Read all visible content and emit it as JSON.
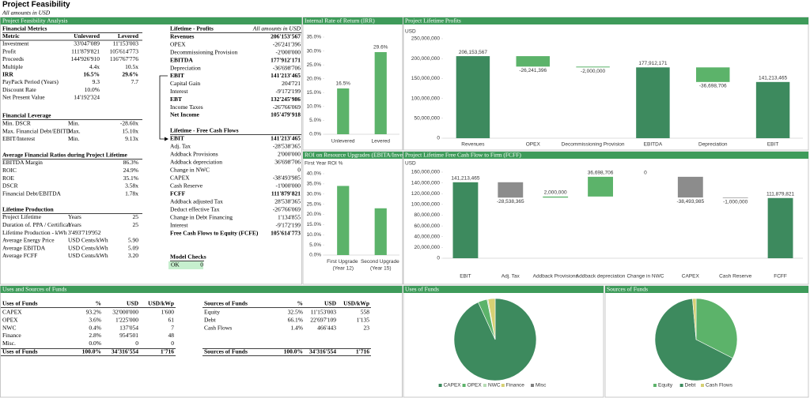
{
  "header": {
    "title": "Project Feasibility",
    "subtitle": "All amounts in USD"
  },
  "panel_titles": [
    "Project Feasibility Analysis",
    "Internal Rate of Return (IRR)",
    "Project Lifetime Profits",
    "ROI on Resource Upgrades (EBITA/Inve",
    "Project Lifetime Free Cash Flow to Firm (FCFF)",
    "Uses and Sources of Funds",
    "Uses of Funds",
    "Sources of Funds"
  ],
  "financial_metrics": {
    "title": "Financial Metrics",
    "columns": [
      "Metric",
      "Unlevered",
      "Levered"
    ],
    "rows": [
      [
        "Investment",
        "33'047'089",
        "11'153'003"
      ],
      [
        "Profit",
        "111'879'821",
        "105'614'773"
      ],
      [
        "Proceeds",
        "144'926'910",
        "116'767'776"
      ],
      [
        "Multiple",
        "4.4x",
        "10.5x"
      ],
      [
        "IRR",
        "16.5%",
        "29.6%"
      ],
      [
        "PayPack Period (Years)",
        "9.3",
        "7.7"
      ],
      [
        "Discount Rate",
        "10.0%"
      ],
      [
        "Net Present Value",
        "14'192'324"
      ]
    ]
  },
  "financial_leverage": {
    "title": "Financial Leverage",
    "rows": [
      [
        "Min. DSCR",
        "Min.",
        "-28.60x"
      ],
      [
        "Max. Financial Debt/EBITD",
        "Max.",
        "15.10x"
      ],
      [
        "EBIT/Interest",
        "Min.",
        "9.13x"
      ]
    ]
  },
  "average_ratios": {
    "title": "Average Financial Ratios during Project Lifetime",
    "rows": [
      [
        "EBITDA Margin",
        "86.3%"
      ],
      [
        "ROIC",
        "24.9%"
      ],
      [
        "ROE",
        "35.1%"
      ],
      [
        "DSCR",
        "3.58x"
      ],
      [
        "Financial Debt/EBITDA",
        "1.78x"
      ]
    ]
  },
  "lifetime_production": {
    "title": "Lifetime Production",
    "rows": [
      [
        "Project Lifetime",
        "Years",
        "25"
      ],
      [
        "Duration of. PPA / Certificat",
        "Years",
        "25"
      ],
      [
        "Lifetime Production - kWh",
        "3'493'719'952"
      ],
      [
        "Average Energy Price",
        "USD Cents/kWh",
        "5.90"
      ],
      [
        "Average EBITDA",
        "USD Cents/kWh",
        "5.09"
      ],
      [
        "Average FCFF",
        "USD Cents/kWh",
        "3.20"
      ]
    ]
  },
  "lifetime_profits": {
    "title": "Lifetime - Profits",
    "note": "All amounts in USD",
    "rows": [
      [
        "Revenues",
        "206'153'567"
      ],
      [
        "OPEX",
        "-26'241'396"
      ],
      [
        "Decommissioning Provision",
        "-2'000'000"
      ],
      [
        "EBITDA",
        "177'912'171"
      ],
      [
        "Depreciation",
        "-36'698'706"
      ],
      [
        "EBIT",
        "141'213'465"
      ],
      [
        "Capital Gain",
        "204'721"
      ],
      [
        "Interest",
        "-9'172'199"
      ],
      [
        "EBT",
        "132'245'986"
      ],
      [
        "Income Taxes",
        "-26'766'069"
      ],
      [
        "Net Income",
        "105'479'918"
      ]
    ]
  },
  "lifetime_cash_flows": {
    "title": "Lifetime - Free Cash Flows",
    "rows": [
      [
        "EBIT",
        "141'213'465"
      ],
      [
        "Adj. Tax",
        "-28'538'365"
      ],
      [
        "Addback Provisions",
        "2'000'000"
      ],
      [
        "Addback depreciation",
        "36'698'706"
      ],
      [
        "Change in NWC",
        "0"
      ],
      [
        "CAPEX",
        "-38'493'985"
      ],
      [
        "Cash Reserve",
        "-1'000'000"
      ],
      [
        "FCFF",
        "111'879'821"
      ],
      [
        "Addback adjusted Tax",
        "28'538'365"
      ],
      [
        "Deduct effective Tax",
        "-26'766'069"
      ],
      [
        "Change in Debt Financing",
        "1'134'855"
      ],
      [
        "Interest",
        "-9'172'199"
      ],
      [
        "Free Cash Flows to Equity (FCFE)",
        "105'614'773"
      ]
    ]
  },
  "model_checks": {
    "title": "Model Checks",
    "rows": [
      [
        "OK",
        "0"
      ]
    ]
  },
  "uses_of_funds": {
    "columns": [
      "Uses of Funds",
      "%",
      "USD",
      "USD/kWp"
    ],
    "rows": [
      [
        "CAPEX",
        "93.2%",
        "32'000'000",
        "1'600"
      ],
      [
        "OPEX",
        "3.6%",
        "1'225'000",
        "61"
      ],
      [
        "NWC",
        "0.4%",
        "137'054",
        "7"
      ],
      [
        "Finance",
        "2.8%",
        "954'501",
        "48"
      ],
      [
        "Misc.",
        "0.0%",
        "0",
        "0"
      ]
    ],
    "total": [
      "Uses of Funds",
      "100.0%",
      "34'316'554",
      "1'716"
    ]
  },
  "sources_of_funds": {
    "columns": [
      "Sources of Funds",
      "%",
      "USD",
      "USD/kWp"
    ],
    "rows": [
      [
        "Equity",
        "32.5%",
        "11'153'003",
        "558"
      ],
      [
        "Debt",
        "66.1%",
        "22'697'109",
        "1'135"
      ],
      [
        "Cash Flows",
        "1.4%",
        "466'443",
        "23"
      ]
    ],
    "total": [
      "Sources of Funds",
      "100.0%",
      "34'316'554",
      "1'716"
    ]
  },
  "chart_data": [
    {
      "type": "bar",
      "categories": [
        "Unlevered",
        "Levered"
      ],
      "values": [
        16.5,
        29.6
      ],
      "value_labels": [
        "16.5%",
        "29.6%"
      ],
      "color": "#5cb36a",
      "ylim": [
        0,
        35
      ],
      "yticks": [
        {
          "value": 0,
          "label": "0.0%"
        },
        {
          "value": 5,
          "label": "5.0%"
        },
        {
          "value": 10,
          "label": "10.0%"
        },
        {
          "value": 15,
          "label": "15.0%"
        },
        {
          "value": 20,
          "label": "20.0%"
        },
        {
          "value": 25,
          "label": "25.0%"
        },
        {
          "value": 30,
          "label": "30.0%"
        },
        {
          "value": 35,
          "label": "35.0%"
        }
      ]
    },
    {
      "type": "bar",
      "title": "First Year ROI %",
      "categories": [
        "First Upgrade (Year 12)",
        "Second Upgrade (Year 15)"
      ],
      "values": [
        34,
        23
      ],
      "color": "#5cb36a",
      "ylim": [
        0,
        40
      ],
      "yticks": [
        {
          "value": 0,
          "label": "0.0%"
        },
        {
          "value": 5,
          "label": "5.0%"
        },
        {
          "value": 10,
          "label": "10.0%"
        },
        {
          "value": 15,
          "label": "15.0%"
        },
        {
          "value": 20,
          "label": "20.0%"
        },
        {
          "value": 25,
          "label": "25.0%"
        },
        {
          "value": 30,
          "label": "30.0%"
        },
        {
          "value": 35,
          "label": "35.0%"
        },
        {
          "value": 40,
          "label": "40.0%"
        }
      ]
    },
    {
      "type": "waterfall",
      "y_label": "USD",
      "categories": [
        "Revenues",
        "OPEX",
        "Decommissioning Provision",
        "EBITDA",
        "Depreciation",
        "EBIT"
      ],
      "values": [
        206153567,
        -26241396,
        -2000000,
        177912171,
        -36698706,
        141213465
      ],
      "value_labels": [
        "206,153,567",
        "-26,241,396",
        "-2,000,000",
        "177,912,171",
        "-36,698,706",
        "141,213,465"
      ],
      "measure": [
        "total",
        "relative",
        "relative",
        "total",
        "relative",
        "total"
      ],
      "colors": [
        "#3d8a5e",
        "#5cb36a",
        "#5cb36a",
        "#3d8a5e",
        "#5cb36a",
        "#3d8a5e"
      ],
      "ylim": [
        0,
        250000000
      ],
      "yticks": [
        0,
        {
          "value": 50000000,
          "label": "50,000,000"
        },
        {
          "value": 100000000,
          "label": "100,000,000"
        },
        {
          "value": 150000000,
          "label": "150,000,000"
        },
        {
          "value": 200000000,
          "label": "200,000,000"
        },
        {
          "value": 250000000,
          "label": "250,000,000"
        }
      ]
    },
    {
      "type": "waterfall",
      "y_label": "USD",
      "categories": [
        "EBIT",
        "Adj. Tax",
        "Addback Provisions",
        "Addback depreciation",
        "Change in NWC",
        "CAPEX",
        "Cash Reserve",
        "FCFF"
      ],
      "values": [
        141213465,
        -28538365,
        2000000,
        36698706,
        0,
        -38493985,
        -1000000,
        111879821
      ],
      "value_labels": [
        "141,213,465",
        "-28,538,365",
        "2,000,000",
        "36,698,706",
        "0",
        "-38,493,985",
        "-1,000,000",
        "111,879,821"
      ],
      "measure": [
        "total",
        "relative",
        "relative",
        "relative",
        "relative",
        "relative",
        "relative",
        "total"
      ],
      "colors": [
        "#3d8a5e",
        "#8c8c8c",
        "#5cb36a",
        "#5cb36a",
        "#8c8c8c",
        "#8c8c8c",
        "#8c8c8c",
        "#3d8a5e"
      ],
      "ylim": [
        0,
        160000000
      ],
      "yticks": [
        0,
        {
          "value": 20000000,
          "label": "20,000,000"
        },
        {
          "value": 40000000,
          "label": "40,000,000"
        },
        {
          "value": 60000000,
          "label": "60,000,000"
        },
        {
          "value": 80000000,
          "label": "80,000,000"
        },
        {
          "value": 100000000,
          "label": "100,000,000"
        },
        {
          "value": 120000000,
          "label": "120,000,000"
        },
        {
          "value": 140000000,
          "label": "140,000,000"
        },
        {
          "value": 160000000,
          "label": "160,000,000"
        }
      ]
    },
    {
      "type": "pie",
      "categories": [
        "CAPEX",
        "OPEX",
        "NWC",
        "Finance",
        "Misc"
      ],
      "values": [
        93.2,
        3.6,
        0.4,
        2.8,
        0.0
      ],
      "colors": [
        "#3d8a5e",
        "#5cb36a",
        "#b7dcb5",
        "#d6d073",
        "#7e7e7e"
      ]
    },
    {
      "type": "pie",
      "categories": [
        "Equity",
        "Debt",
        "Cash Flows"
      ],
      "values": [
        32.5,
        66.1,
        1.4
      ],
      "colors": [
        "#5cb36a",
        "#3d8a5e",
        "#d6d073"
      ]
    }
  ]
}
